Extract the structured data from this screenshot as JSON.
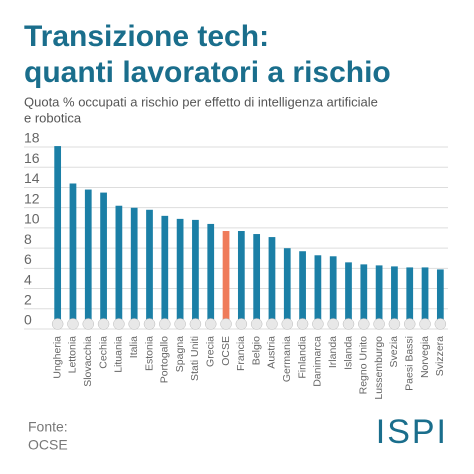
{
  "chart_data": {
    "type": "bar",
    "title": [
      "Transizione tech:",
      "quanti lavoratori a rischio"
    ],
    "subtitle": [
      "Quota % occupati a rischio per effetto di intelligenza artificiale",
      "e robotica"
    ],
    "categories": [
      "Ungheria",
      "Lettonia",
      "Slovacchia",
      "Cechia",
      "Lituania",
      "Italia",
      "Estonia",
      "Portogallo",
      "Spagna",
      "Stati Uniti",
      "Grecia",
      "OCSE",
      "Francia",
      "Belgio",
      "Austria",
      "Germania",
      "Finlandia",
      "Danimarca",
      "Irlanda",
      "Islanda",
      "Regno Unito",
      "Lussemburgo",
      "Svezia",
      "Paesi Bassi",
      "Norvegia",
      "Svizzera"
    ],
    "values": [
      17.3,
      13.6,
      13.0,
      12.7,
      11.4,
      11.2,
      11.0,
      10.4,
      10.1,
      10.0,
      9.6,
      8.9,
      8.9,
      8.6,
      8.3,
      7.2,
      6.9,
      6.5,
      6.4,
      5.8,
      5.6,
      5.5,
      5.4,
      5.3,
      5.3,
      5.1
    ],
    "colors": [
      "#1b7fa6",
      "#1b7fa6",
      "#1b7fa6",
      "#1b7fa6",
      "#1b7fa6",
      "#1b7fa6",
      "#1b7fa6",
      "#1b7fa6",
      "#1b7fa6",
      "#1b7fa6",
      "#1b7fa6",
      "#ef7b5a",
      "#1b7fa6",
      "#1b7fa6",
      "#1b7fa6",
      "#1b7fa6",
      "#1b7fa6",
      "#1b7fa6",
      "#1b7fa6",
      "#1b7fa6",
      "#1b7fa6",
      "#1b7fa6",
      "#1b7fa6",
      "#1b7fa6",
      "#1b7fa6",
      "#1b7fa6"
    ],
    "ylim": [
      0,
      18
    ],
    "yticks": [
      0,
      2,
      4,
      6,
      8,
      10,
      12,
      14,
      16,
      18
    ],
    "grid": true,
    "source_label": "Fonte:",
    "source": "OCSE",
    "logo": "ISPI"
  }
}
